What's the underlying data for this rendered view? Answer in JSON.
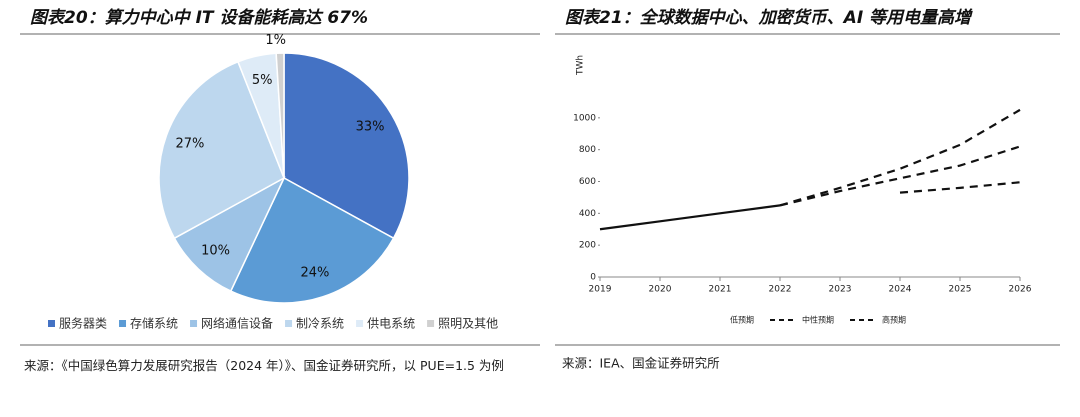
{
  "chart_data": [
    {
      "type": "pie",
      "title": "图表20：算力中心中 IT 设备能耗高达 67%",
      "categories": [
        "服务器类",
        "存储系统",
        "网络通信设备",
        "制冷系统",
        "供电系统",
        "照明及其他"
      ],
      "values": [
        33,
        24,
        10,
        27,
        5,
        1
      ],
      "value_labels": [
        "33%",
        "24%",
        "10%",
        "27%",
        "5%",
        "1%"
      ],
      "colors": [
        "#4472c4",
        "#5b9bd5",
        "#9dc3e6",
        "#bdd7ee",
        "#deebf7",
        "#d0d0d0"
      ],
      "legend": "bottom",
      "source": "来源：《中国绿色算力发展研究报告（2024 年）》、国金证券研究所，以 PUE=1.5 为例"
    },
    {
      "type": "line",
      "title": "图表21：全球数据中心、加密货币、AI 等用电量高增",
      "ylabel": "TWh",
      "xlim": [
        2019,
        2026
      ],
      "xticks": [
        2019,
        2020,
        2021,
        2022,
        2023,
        2024,
        2025,
        2026
      ],
      "ylim": [
        0,
        1200
      ],
      "yticks": [
        0,
        200,
        400,
        600,
        800,
        1000
      ],
      "series": [
        {
          "color": "#111111",
          "dashed": false,
          "x": [
            2019,
            2020,
            2021,
            2022
          ],
          "values": [
            300,
            350,
            400,
            450
          ]
        },
        {
          "name": "低预期",
          "color": "#111111",
          "dashed": true,
          "x": [
            2024,
            2025,
            2026
          ],
          "values": [
            530,
            560,
            595
          ]
        },
        {
          "name": "中性预期",
          "color": "#111111",
          "dashed": true,
          "x": [
            2022,
            2023,
            2024,
            2025,
            2026
          ],
          "values": [
            450,
            540,
            620,
            700,
            820
          ]
        },
        {
          "name": "高预期",
          "color": "#111111",
          "dashed": true,
          "x": [
            2022,
            2023,
            2024,
            2025,
            2026
          ],
          "values": [
            450,
            560,
            680,
            830,
            1050
          ]
        }
      ],
      "legend": "bottom",
      "source": "来源：IEA、国金证券研究所"
    }
  ]
}
